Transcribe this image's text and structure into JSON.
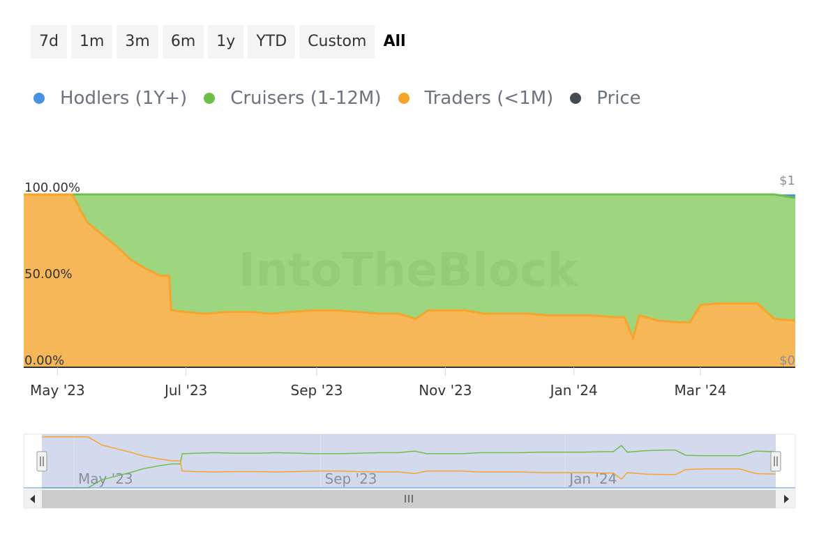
{
  "range_buttons": [
    "7d",
    "1m",
    "3m",
    "6m",
    "1y",
    "YTD",
    "Custom",
    "All"
  ],
  "active_range": "All",
  "legend": [
    {
      "label": "Hodlers (1Y+)",
      "color": "#4a90e2"
    },
    {
      "label": "Cruisers (1-12M)",
      "color": "#6cc04a"
    },
    {
      "label": "Traders (<1M)",
      "color": "#f7a42b"
    },
    {
      "label": "Price",
      "color": "#444a52"
    }
  ],
  "watermark": "IntoTheBlock",
  "chart_data": {
    "type": "area",
    "stacked": true,
    "y_axis_left": {
      "ticks": [
        "0.00%",
        "50.00%",
        "100.00%"
      ],
      "range": [
        0,
        100
      ]
    },
    "y_axis_right": {
      "ticks": [
        "$0",
        "$1"
      ]
    },
    "x_tick_labels": [
      "May '23",
      "Jul '23",
      "Sep '23",
      "Nov '23",
      "Jan '24",
      "Mar '24"
    ],
    "x": [
      "2023-04-15",
      "2023-05-01",
      "2023-05-08",
      "2023-05-15",
      "2023-05-22",
      "2023-05-29",
      "2023-06-05",
      "2023-06-12",
      "2023-06-19",
      "2023-06-23",
      "2023-06-24",
      "2023-07-01",
      "2023-07-10",
      "2023-07-20",
      "2023-08-01",
      "2023-08-10",
      "2023-08-20",
      "2023-08-30",
      "2023-09-10",
      "2023-09-20",
      "2023-10-01",
      "2023-10-10",
      "2023-10-18",
      "2023-10-24",
      "2023-11-01",
      "2023-11-10",
      "2023-11-20",
      "2023-12-01",
      "2023-12-10",
      "2023-12-20",
      "2024-01-01",
      "2024-01-10",
      "2024-01-20",
      "2024-01-25",
      "2024-01-29",
      "2024-02-01",
      "2024-02-10",
      "2024-02-20",
      "2024-02-25",
      "2024-03-01",
      "2024-03-10",
      "2024-03-20",
      "2024-03-28",
      "2024-04-05",
      "2024-04-15"
    ],
    "series": [
      {
        "name": "Traders (<1M)",
        "color": "#f7a42b",
        "values": [
          100,
          100,
          100,
          84,
          77,
          70,
          62,
          57,
          53,
          53,
          33,
          32,
          31,
          32,
          32,
          31,
          32,
          33,
          33,
          32,
          31,
          31,
          28,
          33,
          33,
          33,
          31,
          31,
          31,
          30,
          30,
          30,
          29,
          29,
          17,
          30,
          27,
          26,
          26,
          36,
          37,
          37,
          37,
          28,
          27
        ]
      },
      {
        "name": "Cruisers (1-12M)",
        "color": "#6cc04a",
        "values": [
          0,
          0,
          0,
          16,
          23,
          30,
          38,
          43,
          47,
          47,
          67,
          68,
          69,
          68,
          68,
          69,
          68,
          67,
          67,
          68,
          69,
          69,
          72,
          67,
          67,
          67,
          69,
          69,
          69,
          70,
          70,
          70,
          71,
          71,
          83,
          70,
          73,
          74,
          74,
          64,
          63,
          63,
          63,
          72,
          71
        ]
      },
      {
        "name": "Hodlers (1Y+)",
        "color": "#4a90e2",
        "values": [
          0,
          0,
          0,
          0,
          0,
          0,
          0,
          0,
          0,
          0,
          0,
          0,
          0,
          0,
          0,
          0,
          0,
          0,
          0,
          0,
          0,
          0,
          0,
          0,
          0,
          0,
          0,
          0,
          0,
          0,
          0,
          0,
          0,
          0,
          0,
          0,
          0,
          0,
          0,
          0,
          0,
          0,
          0,
          0,
          2
        ]
      }
    ],
    "navigator": {
      "tick_labels": [
        "May '23",
        "Sep '23",
        "Jan '24"
      ]
    }
  }
}
